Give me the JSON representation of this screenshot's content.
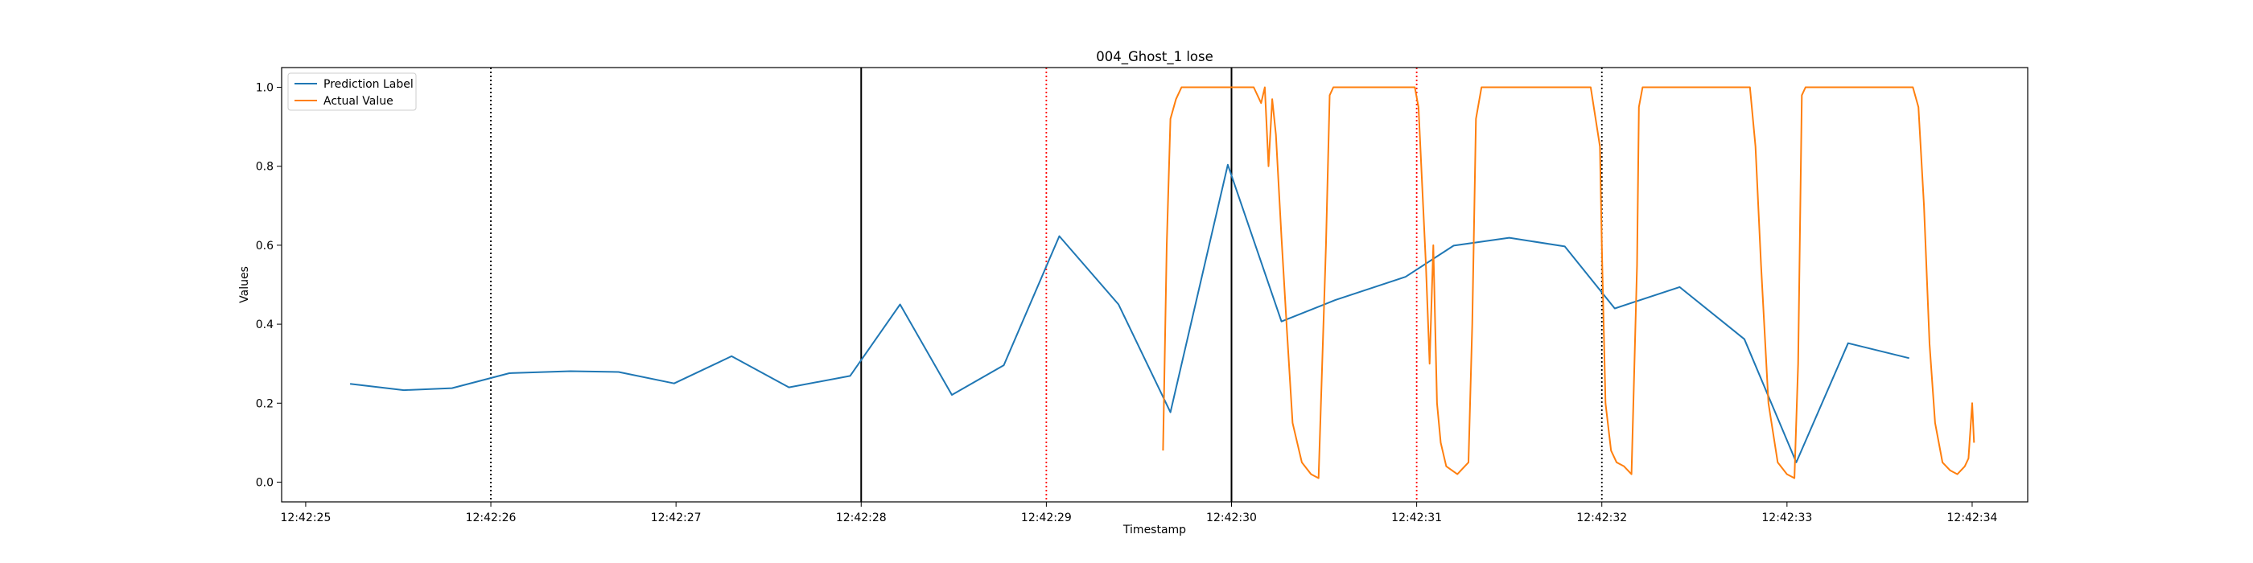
{
  "chart_data": {
    "type": "line",
    "title": "004_Ghost_1 lose",
    "xlabel": "Timestamp",
    "ylabel": "Values",
    "x_ticks": [
      "12:42:25",
      "12:42:26",
      "12:42:27",
      "12:42:28",
      "12:42:29",
      "12:42:30",
      "12:42:31",
      "12:42:32",
      "12:42:33",
      "12:42:34"
    ],
    "y_ticks": [
      "0.0",
      "0.2",
      "0.4",
      "0.6",
      "0.8",
      "1.0"
    ],
    "xlim": [
      "12:42:24.87",
      "12:42:34.30"
    ],
    "ylim": [
      -0.05,
      1.05
    ],
    "grid": false,
    "legend": "upper left",
    "series": [
      {
        "name": "Prediction Label",
        "color": "#1f77b4",
        "x": [
          "12:42:25.24",
          "12:42:25.53",
          "12:42:25.79",
          "12:42:26.10",
          "12:42:26.43",
          "12:42:26.69",
          "12:42:26.99",
          "12:42:27.30",
          "12:42:27.61",
          "12:42:27.94",
          "12:42:28.21",
          "12:42:28.49",
          "12:42:28.77",
          "12:42:29.07",
          "12:42:29.39",
          "12:42:29.67",
          "12:42:29.98",
          "12:42:30.27",
          "12:42:30.56",
          "12:42:30.94",
          "12:42:31.20",
          "12:42:31.50",
          "12:42:31.80",
          "12:42:32.07",
          "12:42:32.42",
          "12:42:32.77",
          "12:42:33.05",
          "12:42:33.33",
          "12:42:33.66"
        ],
        "values": [
          0.249,
          0.233,
          0.238,
          0.276,
          0.281,
          0.279,
          0.25,
          0.319,
          0.24,
          0.269,
          0.45,
          0.221,
          0.296,
          0.623,
          0.45,
          0.177,
          0.804,
          0.407,
          0.461,
          0.52,
          0.599,
          0.619,
          0.597,
          0.44,
          0.494,
          0.362,
          0.05,
          0.352,
          0.314
        ]
      },
      {
        "name": "Actual Value",
        "color": "#ff7f0e",
        "x": [
          "12:42:29.63",
          "12:42:29.65",
          "12:42:29.67",
          "12:42:29.70",
          "12:42:29.73",
          "12:42:29.80",
          "12:42:30.00",
          "12:42:30.12",
          "12:42:30.16",
          "12:42:30.18",
          "12:42:30.20",
          "12:42:30.22",
          "12:42:30.24",
          "12:42:30.27",
          "12:42:30.30",
          "12:42:30.33",
          "12:42:30.38",
          "12:42:30.43",
          "12:42:30.47",
          "12:42:30.51",
          "12:42:30.53",
          "12:42:30.55",
          "12:42:30.58",
          "12:42:30.70",
          "12:42:30.90",
          "12:42:30.99",
          "12:42:31.01",
          "12:42:31.03",
          "12:42:31.05",
          "12:42:31.07",
          "12:42:31.09",
          "12:42:31.11",
          "12:42:31.13",
          "12:42:31.16",
          "12:42:31.22",
          "12:42:31.28",
          "12:42:31.30",
          "12:42:31.32",
          "12:42:31.35",
          "12:42:31.37",
          "12:42:31.40",
          "12:42:31.50",
          "12:42:31.94",
          "12:42:31.99",
          "12:42:32.00",
          "12:42:32.02",
          "12:42:32.05",
          "12:42:32.08",
          "12:42:32.12",
          "12:42:32.16",
          "12:42:32.19",
          "12:42:32.20",
          "12:42:32.22",
          "12:42:32.24",
          "12:42:32.28",
          "12:42:32.35",
          "12:42:32.80",
          "12:42:32.83",
          "12:42:32.86",
          "12:42:32.90",
          "12:42:32.95",
          "12:42:33.00",
          "12:42:33.04",
          "12:42:33.06",
          "12:42:33.08",
          "12:42:33.10",
          "12:42:33.14",
          "12:42:33.20",
          "12:42:33.65",
          "12:42:33.68",
          "12:42:33.71",
          "12:42:33.74",
          "12:42:33.77",
          "12:42:33.80",
          "12:42:33.84",
          "12:42:33.88",
          "12:42:33.92",
          "12:42:33.96",
          "12:42:33.98",
          "12:42:34.00",
          "12:42:34.01"
        ],
        "values": [
          0.08,
          0.6,
          0.92,
          0.97,
          1.0,
          1.0,
          1.0,
          1.0,
          0.96,
          1.0,
          0.8,
          0.97,
          0.88,
          0.62,
          0.38,
          0.15,
          0.05,
          0.02,
          0.01,
          0.6,
          0.98,
          1.0,
          1.0,
          1.0,
          1.0,
          1.0,
          0.95,
          0.75,
          0.55,
          0.3,
          0.6,
          0.2,
          0.1,
          0.04,
          0.02,
          0.05,
          0.4,
          0.92,
          1.0,
          1.0,
          1.0,
          1.0,
          1.0,
          0.85,
          0.6,
          0.2,
          0.08,
          0.05,
          0.04,
          0.02,
          0.55,
          0.95,
          1.0,
          1.0,
          1.0,
          1.0,
          1.0,
          0.85,
          0.55,
          0.2,
          0.05,
          0.02,
          0.01,
          0.3,
          0.98,
          1.0,
          1.0,
          1.0,
          1.0,
          1.0,
          0.95,
          0.7,
          0.35,
          0.15,
          0.05,
          0.03,
          0.02,
          0.04,
          0.06,
          0.2,
          0.1
        ]
      }
    ],
    "vertical_lines": [
      {
        "x": "12:42:26.00",
        "color": "#000000",
        "style": "dotted"
      },
      {
        "x": "12:42:28.00",
        "color": "#000000",
        "style": "solid"
      },
      {
        "x": "12:42:29.00",
        "color": "#ff0000",
        "style": "dotted"
      },
      {
        "x": "12:42:30.00",
        "color": "#000000",
        "style": "solid"
      },
      {
        "x": "12:42:31.00",
        "color": "#ff0000",
        "style": "dotted"
      },
      {
        "x": "12:42:32.00",
        "color": "#000000",
        "style": "dotted"
      }
    ]
  }
}
